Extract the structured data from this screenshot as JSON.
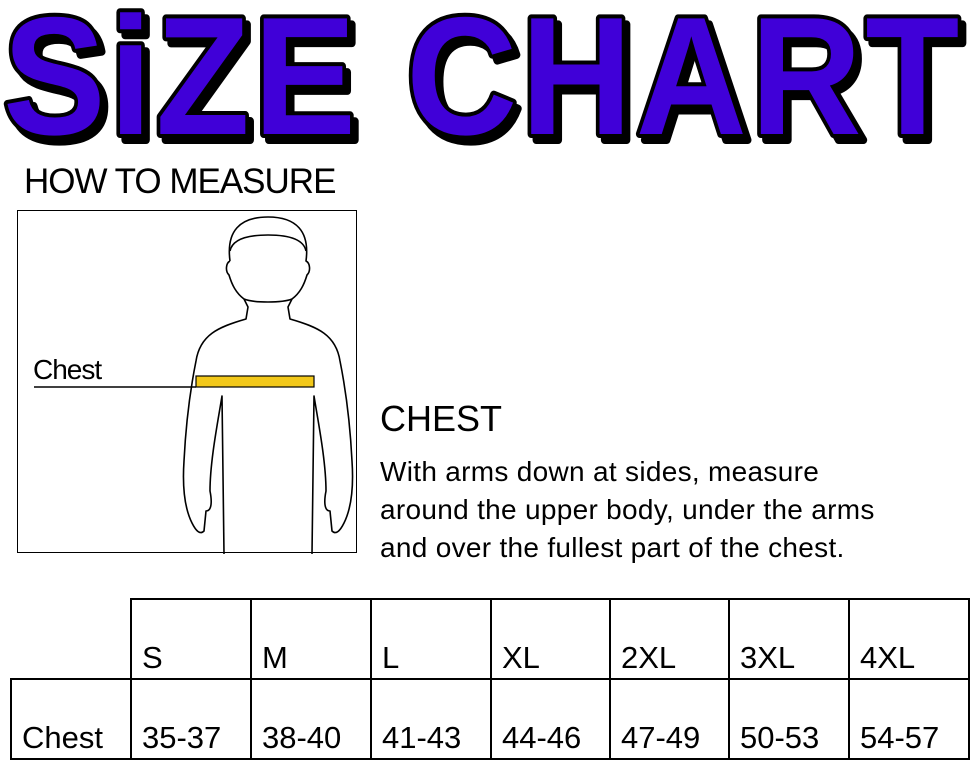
{
  "title": "SiZE CHART",
  "colors": {
    "title_fill": "#3f00d8",
    "title_outline": "#000000",
    "tape": "#f2c81a"
  },
  "how_to_measure": "HOW TO MEASURE",
  "figure": {
    "chest_label": "Chest"
  },
  "instructions": {
    "heading": "CHEST",
    "lines": [
      "With arms down at sides, measure",
      "around the upper body, under the arms",
      "and over the fullest part of the chest."
    ]
  },
  "table": {
    "sizes": [
      "S",
      "M",
      "L",
      "XL",
      "2XL",
      "3XL",
      "4XL"
    ],
    "rows": [
      {
        "label": "Chest",
        "values": [
          "35-37",
          "38-40",
          "41-43",
          "44-46",
          "47-49",
          "50-53",
          "54-57"
        ]
      }
    ]
  }
}
